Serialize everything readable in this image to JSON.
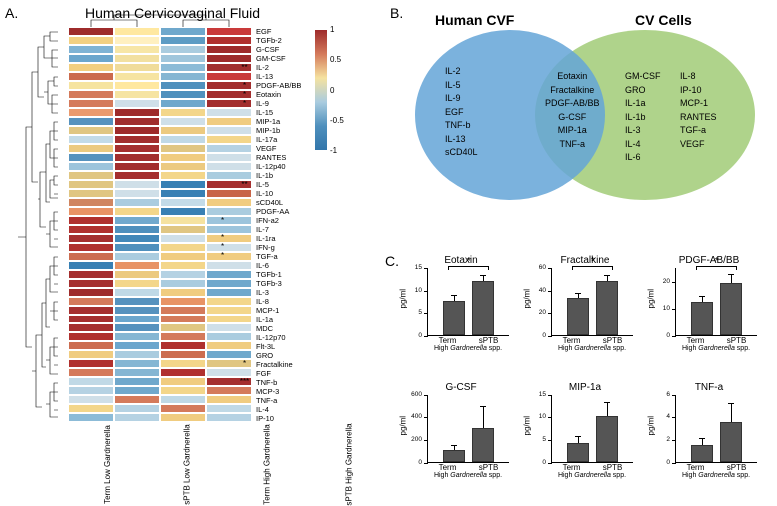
{
  "panelA": {
    "label": "A.",
    "title": "Human Cervicovaginal Fluid",
    "x_labels": [
      "Term Low Gardnerella",
      "sPTB Low Gardnerella",
      "Term High Gardnerella",
      "sPTB High Gardnerella"
    ],
    "cytokines": [
      "EGF",
      "TGFb-2",
      "G-CSF",
      "GM-CSF",
      "IL-2",
      "IL-13",
      "PDGF-AB/BB",
      "Eotaxin",
      "IL-9",
      "IL-15",
      "MIP-1a",
      "MIP-1b",
      "IL-17a",
      "VEGF",
      "RANTES",
      "IL-12p40",
      "IL-1b",
      "IL-5",
      "IL-10",
      "sCD40L",
      "PDGF-AA",
      "IFN-a2",
      "IL-7",
      "IL-1ra",
      "IFN-g",
      "TGF-a",
      "IL-6",
      "TGFb-1",
      "TGFb-3",
      "IL-3",
      "IL-8",
      "MCP-1",
      "IL-1a",
      "MDC",
      "IL-12p70",
      "Flt-3L",
      "GRO",
      "Fractalkine",
      "FGF",
      "TNF-b",
      "MCP-3",
      "TNF-a",
      "IL-4",
      "IP-10"
    ],
    "heatmap_colors": [
      [
        "#9e2b2b",
        "#ffe8a0",
        "#6fa8cc",
        "#c93a3a"
      ],
      [
        "#f2d082",
        "#fff0c0",
        "#5d9cc4",
        "#b0302e"
      ],
      [
        "#7fb3d4",
        "#f7e6a6",
        "#aaccdf",
        "#9e2b2b"
      ],
      [
        "#6ba6cd",
        "#f2e0a0",
        "#a0c6dc",
        "#9e2b2b"
      ],
      [
        "#f2cf80",
        "#f0dc9a",
        "#8cbbd7",
        "#a22e2e"
      ],
      [
        "#cb6a4d",
        "#f6e4a2",
        "#85b6d3",
        "#c93a3a"
      ],
      [
        "#f6e4a0",
        "#ffe8a0",
        "#4f90bd",
        "#a22e2e"
      ],
      [
        "#d47a5b",
        "#f6e4a2",
        "#4f90bd",
        "#a22e2e"
      ],
      [
        "#d47a5b",
        "#cfdfe8",
        "#6fa8cc",
        "#a22e2e"
      ],
      [
        "#ea9a6e",
        "#9e2b2b",
        "#f3d68a",
        "#cfdfe8"
      ],
      [
        "#5692be",
        "#a02e2e",
        "#cfdfe8",
        "#f0cc80"
      ],
      [
        "#e0c682",
        "#9e2b2b",
        "#ecca80",
        "#cfdfe8"
      ],
      [
        "#c3dbe8",
        "#a22e2e",
        "#c0d9e6",
        "#f3d68a"
      ],
      [
        "#ecca80",
        "#a52f2f",
        "#e0c682",
        "#b5d2e3"
      ],
      [
        "#5692be",
        "#a22e2e",
        "#f0cc80",
        "#cfdfe8"
      ],
      [
        "#9cc4dc",
        "#a22e2e",
        "#ecca80",
        "#cfdfe8"
      ],
      [
        "#e0c682",
        "#a52f2f",
        "#f3d68a",
        "#aaccdf"
      ],
      [
        "#e0c682",
        "#cfdfe8",
        "#3880b4",
        "#a52f2f"
      ],
      [
        "#e0c682",
        "#cfdfe8",
        "#3880b4",
        "#c86448"
      ],
      [
        "#d08560",
        "#aaccdf",
        "#c3dbe8",
        "#f0cc80"
      ],
      [
        "#e89365",
        "#f3d68a",
        "#3880b4",
        "#aaccdf"
      ],
      [
        "#b0302e",
        "#71a9cd",
        "#f5e2a0",
        "#9cc4dc"
      ],
      [
        "#b0302e",
        "#4f90bd",
        "#e0c682",
        "#9cc4dc"
      ],
      [
        "#a52f2f",
        "#4288b9",
        "#cfdfe8",
        "#f0cc80"
      ],
      [
        "#b0302e",
        "#4f90bd",
        "#f3d68a",
        "#cfdfe8"
      ],
      [
        "#cc6d50",
        "#aaccdf",
        "#f0cc80",
        "#f0cc80"
      ],
      [
        "#3880b4",
        "#e89365",
        "#f3d68a",
        "#cfdfe8"
      ],
      [
        "#a52f2f",
        "#ecca80",
        "#b5d2e3",
        "#6fa8cc"
      ],
      [
        "#a52f2f",
        "#f3d68a",
        "#aaccdf",
        "#6fa8cc"
      ],
      [
        "#9e2b2b",
        "#c0d9e6",
        "#f0cc80",
        "#6fa8cc"
      ],
      [
        "#d47a5b",
        "#5692be",
        "#e89365",
        "#f3d68a"
      ],
      [
        "#a52f2f",
        "#5692be",
        "#d47a5b",
        "#f3d68a"
      ],
      [
        "#a52f2f",
        "#6ba6cd",
        "#d47a5b",
        "#f3d68a"
      ],
      [
        "#a52f2f",
        "#5692be",
        "#e0c682",
        "#cfdfe8"
      ],
      [
        "#b0302e",
        "#85b6d3",
        "#d47a5b",
        "#aaccdf"
      ],
      [
        "#cc6d50",
        "#6ba6cd",
        "#b0302e",
        "#f0cc80"
      ],
      [
        "#f0cc80",
        "#aaccdf",
        "#cc6d50",
        "#6fa8cc"
      ],
      [
        "#b0302e",
        "#85b6d3",
        "#f3d68a",
        "#e0c682"
      ],
      [
        "#d47a5b",
        "#85b6d3",
        "#b0302e",
        "#cfdfe8"
      ],
      [
        "#c0d9e6",
        "#6fa8cc",
        "#f0cc80",
        "#a52f2f"
      ],
      [
        "#b5d2e3",
        "#6fa8cc",
        "#f3d68a",
        "#d47a5b"
      ],
      [
        "#cfdfe8",
        "#d47a5b",
        "#c0d9e6",
        "#f0cc80"
      ],
      [
        "#f3d68a",
        "#b5d2e3",
        "#d47a5b",
        "#c0d9e6"
      ],
      [
        "#8cbbd7",
        "#b5d2e3",
        "#f0cc80",
        "#b5d2e3"
      ]
    ],
    "stars": {
      "4": [
        "",
        "",
        "",
        "**"
      ],
      "6": [
        "",
        "",
        "",
        "*"
      ],
      "7": [
        "",
        "",
        "",
        "*"
      ],
      "8": [
        "",
        "",
        "",
        "*"
      ],
      "17": [
        "",
        "",
        "",
        "**"
      ],
      "21": [
        "",
        "*",
        "",
        ""
      ],
      "23": [
        "",
        "*",
        "",
        ""
      ],
      "24": [
        "",
        "*",
        "",
        ""
      ],
      "25": [
        "",
        "*",
        "",
        ""
      ],
      "37": [
        "",
        "",
        "",
        "*"
      ],
      "39": [
        "",
        "",
        "",
        "***"
      ]
    },
    "colorbar_stops": [
      "#9e2b2b",
      "#d47a5b",
      "#f5e2a0",
      "#aaccdf",
      "#4f90bd",
      "#3276ab"
    ],
    "cb_ticks": [
      "1",
      "0.5",
      "0",
      "-0.5",
      "-1"
    ]
  },
  "panelB": {
    "label": "B.",
    "title_left": "Human CVF",
    "title_right": "CV Cells",
    "left_items": [
      "IL-2",
      "IL-5",
      "IL-9",
      "EGF",
      "TNF-b",
      "IL-13",
      "sCD40L"
    ],
    "mid_items": [
      "Eotaxin",
      "Fractalkine",
      "PDGF-AB/BB",
      "G-CSF",
      "MIP-1a",
      "TNF-a"
    ],
    "right_items_col1": [
      "GM-CSF",
      "GRO",
      "IL-1a",
      "IL-1b",
      "IL-3",
      "IL-4",
      "IL-6"
    ],
    "right_items_col2": [
      "IL-8",
      "IP-10",
      "MCP-1",
      "RANTES",
      "TGF-a",
      "VEGF"
    ]
  },
  "panelC": {
    "label": "C.",
    "ylabel": "pg/ml",
    "sublabel_prefix": "High ",
    "sublabel_em": "Gardnerella",
    "sublabel_suffix": " spp.",
    "charts": [
      {
        "title": "Eotaxin",
        "ymax": 15,
        "yticks": [
          0,
          5,
          10,
          15
        ],
        "v": [
          7.5,
          12
        ],
        "e": [
          1.2,
          1
        ],
        "sig": "*"
      },
      {
        "title": "Fractalkine",
        "ymax": 60,
        "yticks": [
          0,
          20,
          40,
          60
        ],
        "v": [
          33,
          48
        ],
        "e": [
          3,
          4
        ],
        "sig": "*"
      },
      {
        "title": "PDGF-AB/BB",
        "ymax": 25,
        "yticks": [
          0,
          10,
          20
        ],
        "v": [
          12,
          19
        ],
        "e": [
          2,
          3
        ],
        "sig": "*"
      },
      {
        "title": "G-CSF",
        "ymax": 600,
        "yticks": [
          0,
          200,
          400,
          600
        ],
        "v": [
          100,
          300
        ],
        "e": [
          40,
          180
        ],
        "sig": ""
      },
      {
        "title": "MIP-1a",
        "ymax": 15,
        "yticks": [
          0,
          5,
          10,
          15
        ],
        "v": [
          4,
          10
        ],
        "e": [
          1.5,
          3
        ],
        "sig": ""
      },
      {
        "title": "TNF-a",
        "ymax": 6,
        "yticks": [
          0,
          2,
          4,
          6
        ],
        "v": [
          1.5,
          3.5
        ],
        "e": [
          0.5,
          1.6
        ],
        "sig": ""
      }
    ],
    "x_labels": [
      "Term",
      "sPTB"
    ]
  }
}
